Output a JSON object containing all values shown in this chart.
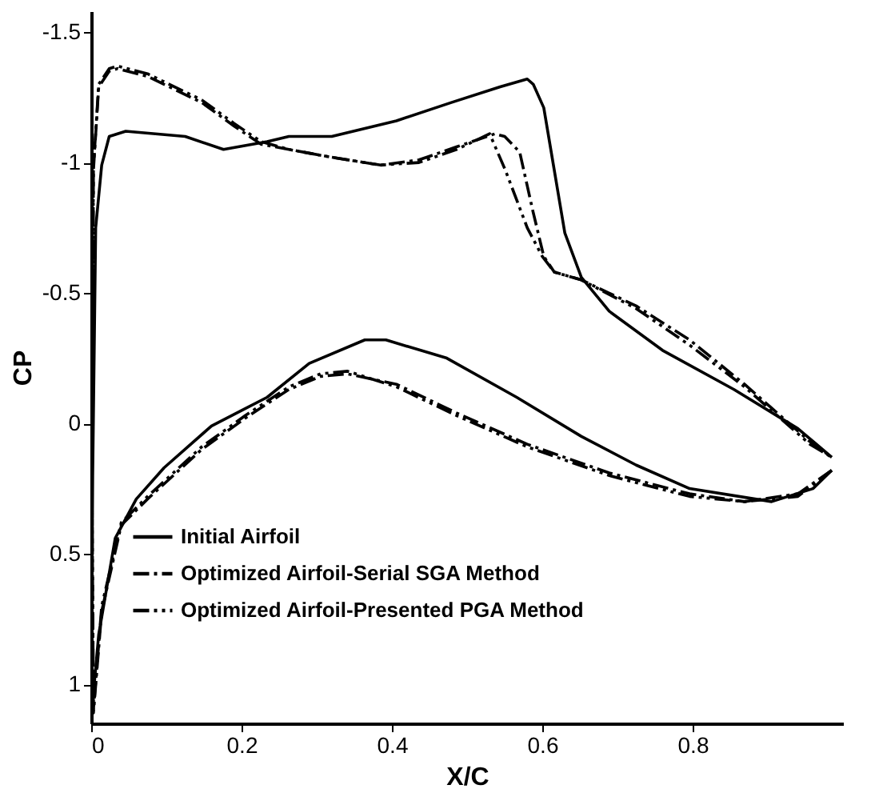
{
  "chart_data": {
    "type": "line",
    "xlabel": "X/C",
    "ylabel": "CP",
    "xlim": [
      0,
      1
    ],
    "ylim": [
      1.15,
      -1.58
    ],
    "xticks": [
      0,
      0.2,
      0.4,
      0.6,
      0.8
    ],
    "yticks": [
      -1.5,
      -1,
      -0.5,
      0,
      0.5,
      1
    ],
    "grid": false,
    "legend": "bottom left",
    "series": [
      {
        "name": "Initial Airfoil",
        "color": "#000000",
        "line_style": "solid",
        "x": [
          0.985,
          0.96,
          0.905,
          0.796,
          0.725,
          0.652,
          0.566,
          0.473,
          0.392,
          0.364,
          0.29,
          0.234,
          0.16,
          0.097,
          0.06,
          0.032,
          0.01,
          0,
          0.002,
          0.006,
          0.014,
          0.024,
          0.046,
          0.125,
          0.176,
          0.234,
          0.263,
          0.32,
          0.406,
          0.479,
          0.544,
          0.58,
          0.588,
          0.602,
          0.616,
          0.63,
          0.652,
          0.689,
          0.76,
          0.855,
          0.94,
          0.985
        ],
        "values": [
          0.18,
          0.25,
          0.3,
          0.25,
          0.16,
          0.05,
          -0.1,
          -0.25,
          -0.32,
          -0.32,
          -0.23,
          -0.1,
          0.01,
          0.17,
          0.29,
          0.44,
          0.81,
          1.13,
          0.2,
          -0.75,
          -0.99,
          -1.1,
          -1.12,
          -1.1,
          -1.05,
          -1.08,
          -1.1,
          -1.1,
          -1.16,
          -1.23,
          -1.29,
          -1.32,
          -1.3,
          -1.21,
          -0.97,
          -0.73,
          -0.56,
          -0.43,
          -0.28,
          -0.13,
          0.02,
          0.13
        ]
      },
      {
        "name": "Optimized Airfoil-Serial SGA Method",
        "color": "#000000",
        "line_style": "dashdot",
        "x": [
          0.985,
          0.94,
          0.869,
          0.796,
          0.689,
          0.58,
          0.486,
          0.406,
          0.341,
          0.305,
          0.263,
          0.205,
          0.147,
          0.075,
          0.04,
          0.014,
          0.003,
          0.001,
          0.003,
          0.01,
          0.024,
          0.035,
          0.075,
          0.147,
          0.19,
          0.226,
          0.263,
          0.32,
          0.385,
          0.436,
          0.486,
          0.537,
          0.55,
          0.57,
          0.587,
          0.602,
          0.616,
          0.652,
          0.725,
          0.796,
          0.869,
          0.956,
          0.985
        ],
        "values": [
          0.18,
          0.27,
          0.3,
          0.27,
          0.19,
          0.08,
          -0.04,
          -0.15,
          -0.19,
          -0.18,
          -0.13,
          -0.02,
          0.1,
          0.29,
          0.39,
          0.72,
          1.11,
          0.2,
          -0.97,
          -1.29,
          -1.35,
          -1.36,
          -1.33,
          -1.23,
          -1.14,
          -1.07,
          -1.05,
          -1.02,
          -0.99,
          -1.01,
          -1.06,
          -1.11,
          -1.1,
          -1.04,
          -0.82,
          -0.64,
          -0.58,
          -0.55,
          -0.45,
          -0.32,
          -0.15,
          0.07,
          0.13
        ]
      },
      {
        "name": "Optimized Airfoil-Presented PGA Method",
        "color": "#000000",
        "line_style": "dashdotdot",
        "x": [
          0.985,
          0.94,
          0.869,
          0.796,
          0.689,
          0.58,
          0.486,
          0.406,
          0.341,
          0.305,
          0.263,
          0.205,
          0.147,
          0.075,
          0.04,
          0.014,
          0.003,
          0.001,
          0.003,
          0.01,
          0.024,
          0.035,
          0.075,
          0.147,
          0.19,
          0.226,
          0.263,
          0.32,
          0.385,
          0.436,
          0.486,
          0.53,
          0.551,
          0.58,
          0.6,
          0.616,
          0.652,
          0.725,
          0.796,
          0.869,
          0.956,
          0.985
        ],
        "values": [
          0.18,
          0.28,
          0.3,
          0.28,
          0.2,
          0.09,
          -0.03,
          -0.14,
          -0.2,
          -0.19,
          -0.14,
          -0.03,
          0.09,
          0.28,
          0.38,
          0.7,
          1.1,
          0.2,
          -0.98,
          -1.3,
          -1.36,
          -1.37,
          -1.34,
          -1.24,
          -1.15,
          -1.08,
          -1.05,
          -1.02,
          -0.99,
          -1.0,
          -1.05,
          -1.11,
          -0.97,
          -0.75,
          -0.64,
          -0.58,
          -0.55,
          -0.44,
          -0.3,
          -0.14,
          0.08,
          0.13
        ]
      }
    ]
  }
}
